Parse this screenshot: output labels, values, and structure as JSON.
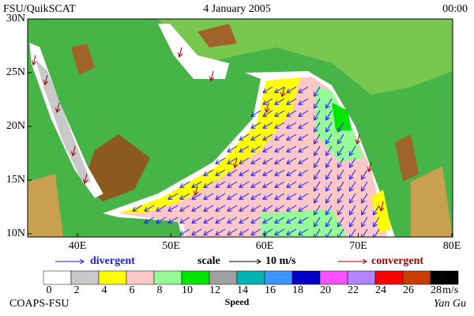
{
  "header": {
    "left": "FSU/QuikSCAT",
    "center": "4 January 2005",
    "right": "00:00"
  },
  "map": {
    "lat_labels": [
      "30N",
      "25N",
      "20N",
      "15N",
      "10N"
    ],
    "lon_labels": [
      "40E",
      "50E",
      "60E",
      "70E",
      "80E"
    ]
  },
  "legend": {
    "divergent": "divergent",
    "scale": "scale",
    "scale_value": "10 m/s",
    "convergent": "convergent"
  },
  "colorbar": {
    "colors": [
      "#ffffff",
      "#c8c8c8",
      "#ffff00",
      "#ffc8c8",
      "#96fa96",
      "#00e600",
      "#a0a0a0",
      "#00b4b4",
      "#3c96ff",
      "#0000c8",
      "#ff50ff",
      "#b482ff",
      "#ff0000",
      "#c83c00",
      "#000000"
    ],
    "labels": [
      "0",
      "2",
      "4",
      "6",
      "8",
      "10",
      "12",
      "14",
      "16",
      "18",
      "20",
      "22",
      "24",
      "26",
      "28"
    ],
    "unit": "m/s",
    "title": "Speed"
  },
  "footer": {
    "left": "COAPS-FSU",
    "right": "Yan Gu"
  }
}
